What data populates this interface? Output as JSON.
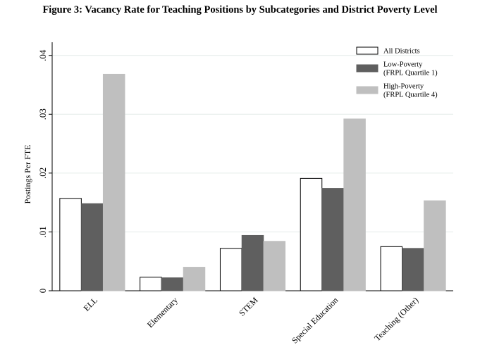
{
  "figure": {
    "title": "Figure 3: Vacancy Rate for Teaching Positions by Subcategories and District Poverty Level"
  },
  "chart_data": {
    "type": "bar",
    "title": "",
    "xlabel": "",
    "ylabel": "Postings Per FTE",
    "ylim": [
      0,
      0.042
    ],
    "yticks": [
      0,
      0.01,
      0.02,
      0.03,
      0.04
    ],
    "ytick_labels": [
      "0",
      ".01",
      ".02",
      ".03",
      ".04"
    ],
    "grid": true,
    "legend_position": "top-right",
    "categories": [
      "ELL",
      "Elementary",
      "STEM",
      "Special Education",
      "Teaching (Other)"
    ],
    "series": [
      {
        "name": "All Districts",
        "legend_lines": [
          "All Districts"
        ],
        "color": "#ffffff",
        "stroke": "#000000",
        "values": [
          0.0157,
          0.0023,
          0.0072,
          0.0191,
          0.0075
        ]
      },
      {
        "name": "Low-Poverty (FRPL Quartile 1)",
        "legend_lines": [
          "Low-Poverty",
          "(FRPL Quartile 1)"
        ],
        "color": "#5f5f5f",
        "stroke": "#5f5f5f",
        "values": [
          0.0148,
          0.0022,
          0.0094,
          0.0174,
          0.0072
        ]
      },
      {
        "name": "High-Poverty (FRPL Quartile 4)",
        "legend_lines": [
          "High-Poverty",
          "(FRPL Quartile 4)"
        ],
        "color": "#bfbfbf",
        "stroke": "#bfbfbf",
        "values": [
          0.0368,
          0.004,
          0.0084,
          0.0292,
          0.0153
        ]
      }
    ]
  }
}
